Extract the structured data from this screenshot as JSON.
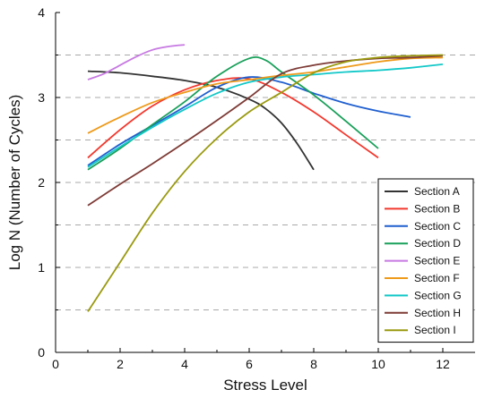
{
  "chart_data": {
    "type": "line",
    "title": "",
    "xlabel": "Stress Level",
    "ylabel": "Log N (Number of Cycles)",
    "xlim": [
      0,
      13
    ],
    "ylim": [
      0,
      4
    ],
    "x_ticks": [
      "0",
      "2",
      "4",
      "6",
      "8",
      "10",
      "12"
    ],
    "y_ticks": [
      "0",
      "1",
      "2",
      "3",
      "4"
    ],
    "grid": "dashed horizontal lines at 0.5 intervals",
    "legend_position": "bottom-right",
    "series": [
      {
        "name": "Section A",
        "color": "#333333",
        "points": [
          [
            1,
            3.31
          ],
          [
            2,
            3.29
          ],
          [
            3,
            3.25
          ],
          [
            4,
            3.2
          ],
          [
            5,
            3.12
          ],
          [
            6,
            2.98
          ],
          [
            6.5,
            2.87
          ],
          [
            7,
            2.7
          ],
          [
            7.5,
            2.45
          ],
          [
            8,
            2.15
          ]
        ]
      },
      {
        "name": "Section B",
        "color": "#f2382e",
        "points": [
          [
            1,
            2.29
          ],
          [
            2,
            2.62
          ],
          [
            3,
            2.9
          ],
          [
            4,
            3.09
          ],
          [
            5,
            3.2
          ],
          [
            6,
            3.22
          ],
          [
            7,
            3.06
          ],
          [
            8,
            2.83
          ],
          [
            9,
            2.56
          ],
          [
            10,
            2.29
          ]
        ]
      },
      {
        "name": "Section C",
        "color": "#1f5fcf",
        "points": [
          [
            1,
            2.2
          ],
          [
            2,
            2.45
          ],
          [
            3,
            2.67
          ],
          [
            4,
            2.89
          ],
          [
            5,
            3.12
          ],
          [
            6,
            3.24
          ],
          [
            7,
            3.18
          ],
          [
            8,
            3.05
          ],
          [
            9,
            2.93
          ],
          [
            10,
            2.84
          ],
          [
            11,
            2.77
          ]
        ]
      },
      {
        "name": "Section D",
        "color": "#19a05a",
        "points": [
          [
            1,
            2.15
          ],
          [
            2,
            2.4
          ],
          [
            3,
            2.68
          ],
          [
            4,
            2.95
          ],
          [
            5,
            3.25
          ],
          [
            6,
            3.46
          ],
          [
            6.5,
            3.44
          ],
          [
            7,
            3.3
          ],
          [
            8,
            3.03
          ],
          [
            9,
            2.72
          ],
          [
            10,
            2.4
          ]
        ]
      },
      {
        "name": "Section E",
        "color": "#c77ae2",
        "points": [
          [
            1,
            3.21
          ],
          [
            1.5,
            3.28
          ],
          [
            2,
            3.38
          ],
          [
            2.5,
            3.48
          ],
          [
            3,
            3.56
          ],
          [
            3.5,
            3.6
          ],
          [
            4,
            3.62
          ]
        ]
      },
      {
        "name": "Section F",
        "color": "#ee9a1a",
        "points": [
          [
            1,
            2.58
          ],
          [
            2,
            2.77
          ],
          [
            3,
            2.94
          ],
          [
            4,
            3.06
          ],
          [
            5,
            3.16
          ],
          [
            6,
            3.21
          ],
          [
            7,
            3.26
          ],
          [
            8,
            3.3
          ],
          [
            9,
            3.36
          ],
          [
            10,
            3.42
          ],
          [
            11,
            3.46
          ],
          [
            12,
            3.47
          ]
        ]
      },
      {
        "name": "Section G",
        "color": "#13c8c8",
        "points": [
          [
            1,
            2.18
          ],
          [
            2,
            2.42
          ],
          [
            3,
            2.65
          ],
          [
            4,
            2.86
          ],
          [
            5,
            3.05
          ],
          [
            6,
            3.18
          ],
          [
            7,
            3.24
          ],
          [
            8,
            3.27
          ],
          [
            9,
            3.3
          ],
          [
            10,
            3.32
          ],
          [
            11,
            3.35
          ],
          [
            12,
            3.39
          ]
        ]
      },
      {
        "name": "Section H",
        "color": "#7e3b36",
        "points": [
          [
            1,
            1.73
          ],
          [
            2,
            1.98
          ],
          [
            3,
            2.22
          ],
          [
            4,
            2.47
          ],
          [
            5,
            2.73
          ],
          [
            6,
            3.0
          ],
          [
            7,
            3.28
          ],
          [
            8,
            3.38
          ],
          [
            9,
            3.43
          ],
          [
            10,
            3.46
          ],
          [
            11,
            3.47
          ],
          [
            12,
            3.49
          ]
        ]
      },
      {
        "name": "Section  I",
        "color": "#9a9a10",
        "points": [
          [
            1,
            0.48
          ],
          [
            2,
            1.06
          ],
          [
            3,
            1.64
          ],
          [
            4,
            2.13
          ],
          [
            5,
            2.52
          ],
          [
            6,
            2.83
          ],
          [
            7,
            3.06
          ],
          [
            8,
            3.29
          ],
          [
            9,
            3.42
          ],
          [
            10,
            3.47
          ],
          [
            11,
            3.49
          ],
          [
            12,
            3.5
          ]
        ]
      }
    ]
  }
}
